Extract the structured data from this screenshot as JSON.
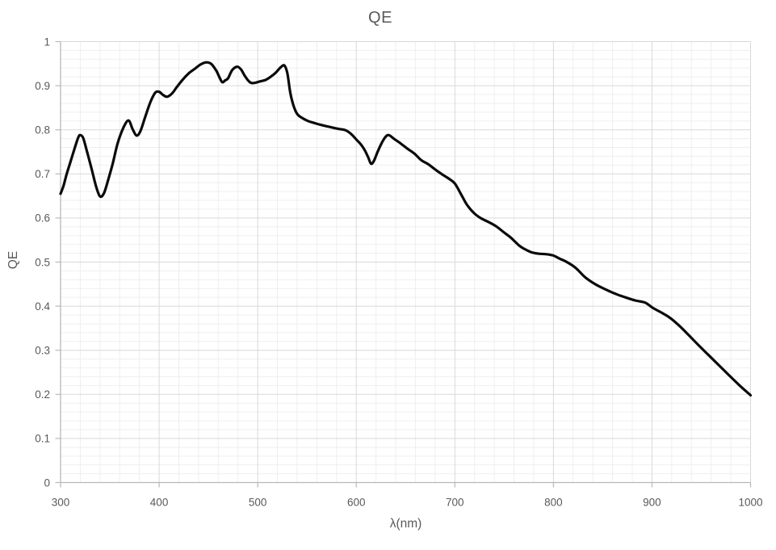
{
  "chart": {
    "title": "QE",
    "x_axis": {
      "label": "λ(nm)",
      "min": 300,
      "max": 1000,
      "major_step": 100,
      "minor_step": 20,
      "tick_labels": [
        "300",
        "400",
        "500",
        "600",
        "700",
        "800",
        "900",
        "1000"
      ]
    },
    "y_axis": {
      "label": "QE",
      "min": 0,
      "max": 1,
      "major_step": 0.1,
      "minor_step": 0.02,
      "tick_labels": [
        "0",
        "0.1",
        "0.2",
        "0.3",
        "0.4",
        "0.5",
        "0.6",
        "0.7",
        "0.8",
        "0.9",
        "1"
      ]
    },
    "colors": {
      "line": "#0b0b0b",
      "major_grid": "#d9d9d9",
      "minor_grid": "#efefef",
      "axis": "#b8b8b8",
      "text": "#595959",
      "background": "#ffffff"
    }
  },
  "chart_data": {
    "type": "line",
    "title": "QE",
    "xlabel": "λ(nm)",
    "ylabel": "QE",
    "xlim": [
      300,
      1000
    ],
    "ylim": [
      0,
      1
    ],
    "grid": "major+minor",
    "legend": "none",
    "series": [
      {
        "name": "QE",
        "x": [
          300,
          303,
          306,
          310,
          315,
          318,
          320,
          323,
          327,
          331,
          336,
          340,
          344,
          348,
          353,
          358,
          364,
          369,
          373,
          377,
          381,
          386,
          391,
          396,
          400,
          404,
          408,
          413,
          418,
          424,
          430,
          436,
          442,
          448,
          453,
          458,
          461,
          464,
          467,
          470,
          474,
          479,
          483,
          487,
          491,
          494,
          498,
          503,
          508,
          513,
          518,
          523,
          527,
          530,
          533,
          536,
          540,
          545,
          551,
          558,
          566,
          574,
          582,
          589,
          595,
          600,
          605,
          609,
          612,
          615,
          618,
          622,
          627,
          631,
          634,
          638,
          645,
          652,
          659,
          666,
          673,
          680,
          687,
          694,
          700,
          706,
          712,
          719,
          726,
          734,
          742,
          750,
          757,
          766,
          773,
          778,
          785,
          792,
          798,
          801,
          807,
          812,
          822,
          832,
          843,
          853,
          863,
          873,
          883,
          893,
          901,
          910,
          918,
          927,
          937,
          947,
          957,
          967,
          977,
          988,
          1000
        ],
        "y": [
          0.655,
          0.673,
          0.698,
          0.727,
          0.763,
          0.783,
          0.788,
          0.781,
          0.749,
          0.716,
          0.672,
          0.649,
          0.656,
          0.684,
          0.724,
          0.77,
          0.806,
          0.821,
          0.802,
          0.787,
          0.797,
          0.83,
          0.862,
          0.884,
          0.886,
          0.879,
          0.875,
          0.882,
          0.897,
          0.914,
          0.928,
          0.938,
          0.948,
          0.953,
          0.949,
          0.934,
          0.92,
          0.908,
          0.912,
          0.917,
          0.935,
          0.943,
          0.937,
          0.922,
          0.91,
          0.906,
          0.907,
          0.91,
          0.913,
          0.92,
          0.929,
          0.941,
          0.946,
          0.929,
          0.885,
          0.857,
          0.836,
          0.827,
          0.82,
          0.815,
          0.81,
          0.806,
          0.802,
          0.799,
          0.79,
          0.778,
          0.766,
          0.752,
          0.738,
          0.723,
          0.73,
          0.752,
          0.775,
          0.787,
          0.787,
          0.78,
          0.769,
          0.757,
          0.746,
          0.731,
          0.722,
          0.71,
          0.699,
          0.689,
          0.678,
          0.655,
          0.631,
          0.612,
          0.6,
          0.591,
          0.581,
          0.567,
          0.555,
          0.536,
          0.527,
          0.522,
          0.519,
          0.518,
          0.516,
          0.514,
          0.507,
          0.502,
          0.488,
          0.466,
          0.449,
          0.438,
          0.428,
          0.42,
          0.413,
          0.408,
          0.396,
          0.385,
          0.374,
          0.357,
          0.335,
          0.312,
          0.29,
          0.268,
          0.246,
          0.222,
          0.198
        ]
      }
    ]
  }
}
